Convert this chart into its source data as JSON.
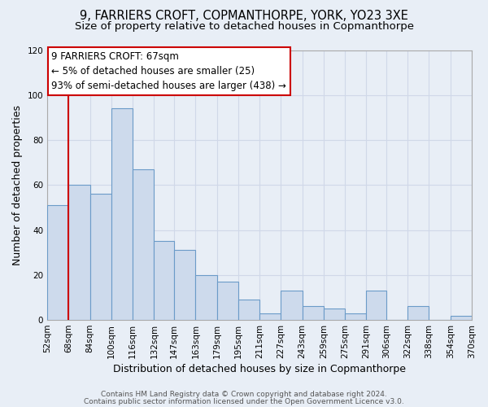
{
  "title": "9, FARRIERS CROFT, COPMANTHORPE, YORK, YO23 3XE",
  "subtitle": "Size of property relative to detached houses in Copmanthorpe",
  "xlabel": "Distribution of detached houses by size in Copmanthorpe",
  "ylabel": "Number of detached properties",
  "bar_color": "#cddaec",
  "bar_edge_color": "#6b9bc8",
  "bin_edges": [
    52,
    68,
    84,
    100,
    116,
    132,
    147,
    163,
    179,
    195,
    211,
    227,
    243,
    259,
    275,
    291,
    306,
    322,
    338,
    354,
    370
  ],
  "bin_labels": [
    "52sqm",
    "68sqm",
    "84sqm",
    "100sqm",
    "116sqm",
    "132sqm",
    "147sqm",
    "163sqm",
    "179sqm",
    "195sqm",
    "211sqm",
    "227sqm",
    "243sqm",
    "259sqm",
    "275sqm",
    "291sqm",
    "306sqm",
    "322sqm",
    "338sqm",
    "354sqm",
    "370sqm"
  ],
  "counts": [
    51,
    60,
    56,
    94,
    67,
    35,
    31,
    20,
    17,
    9,
    3,
    13,
    6,
    5,
    3,
    13,
    0,
    6,
    0,
    2
  ],
  "ylim": [
    0,
    120
  ],
  "yticks": [
    0,
    20,
    40,
    60,
    80,
    100,
    120
  ],
  "vline_x": 68,
  "annotation_title": "9 FARRIERS CROFT: 67sqm",
  "annotation_line1": "← 5% of detached houses are smaller (25)",
  "annotation_line2": "93% of semi-detached houses are larger (438) →",
  "annotation_box_color": "#ffffff",
  "annotation_box_edge_color": "#cc0000",
  "vline_color": "#cc0000",
  "footer1": "Contains HM Land Registry data © Crown copyright and database right 2024.",
  "footer2": "Contains public sector information licensed under the Open Government Licence v3.0.",
  "background_color": "#e8eef6",
  "grid_color": "#d0d8e8",
  "title_fontsize": 10.5,
  "subtitle_fontsize": 9.5,
  "axis_label_fontsize": 9,
  "tick_fontsize": 7.5,
  "annotation_fontsize": 8.5,
  "footer_fontsize": 6.5
}
